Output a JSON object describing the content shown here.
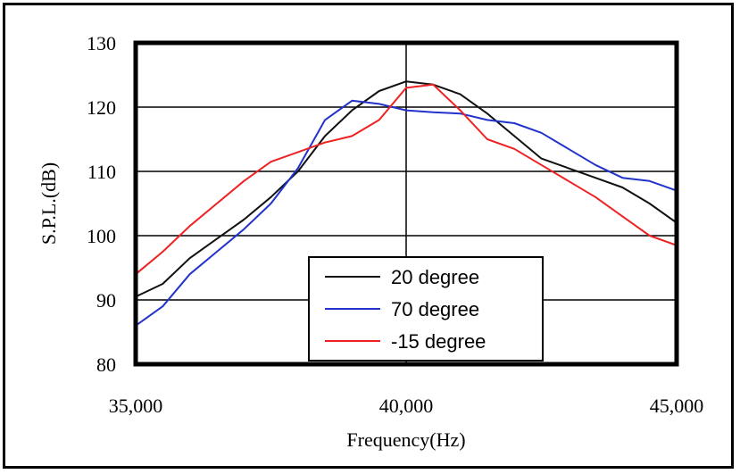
{
  "chart_data": {
    "type": "line",
    "xlabel": "Frequency(Hz)",
    "ylabel": "S.P.L.(dB)",
    "xlim": [
      35000,
      45000
    ],
    "ylim": [
      80,
      130
    ],
    "x_ticks": [
      35000,
      40000,
      45000
    ],
    "x_tick_labels": [
      "35,000",
      "40,000",
      "45,000"
    ],
    "y_ticks": [
      80,
      90,
      100,
      110,
      120,
      130
    ],
    "y_tick_labels": [
      "80",
      "90",
      "100",
      "110",
      "120",
      "130"
    ],
    "grid": true,
    "legend_position": "bottom-center",
    "series": [
      {
        "name": "20 degree",
        "color": "#111111",
        "x": [
          35000,
          35500,
          36000,
          36500,
          37000,
          37500,
          38000,
          38500,
          39000,
          39500,
          40000,
          40500,
          41000,
          41500,
          42000,
          42500,
          43000,
          43500,
          44000,
          44500,
          45000
        ],
        "y": [
          90.5,
          92.5,
          96.5,
          99.5,
          102.5,
          106,
          110,
          115.5,
          119.5,
          122.5,
          124,
          123.5,
          122,
          119,
          115.5,
          112,
          110.5,
          109,
          107.5,
          105,
          102
        ]
      },
      {
        "name": "70 degree",
        "color": "#2233cc",
        "x": [
          35000,
          35500,
          36000,
          36500,
          37000,
          37500,
          38000,
          38500,
          39000,
          39500,
          40000,
          40500,
          41000,
          41500,
          42000,
          42500,
          43000,
          43500,
          44000,
          44500,
          45000
        ],
        "y": [
          86,
          89,
          94,
          97.5,
          101,
          105,
          110.5,
          118,
          121,
          120.5,
          119.5,
          119.2,
          119,
          118,
          117.5,
          116,
          113.5,
          111,
          109,
          108.5,
          107
        ]
      },
      {
        "name": "-15 degree",
        "color": "#ee2222",
        "x": [
          35000,
          35500,
          36000,
          36500,
          37000,
          37500,
          38000,
          38500,
          39000,
          39500,
          40000,
          40500,
          41000,
          41500,
          42000,
          42500,
          43000,
          43500,
          44000,
          44500,
          45000
        ],
        "y": [
          94,
          97.5,
          101.5,
          105,
          108.5,
          111.5,
          113,
          114.5,
          115.5,
          118,
          123,
          123.5,
          119.5,
          115,
          113.5,
          111,
          108.5,
          106,
          103,
          100,
          98.5
        ]
      }
    ]
  }
}
